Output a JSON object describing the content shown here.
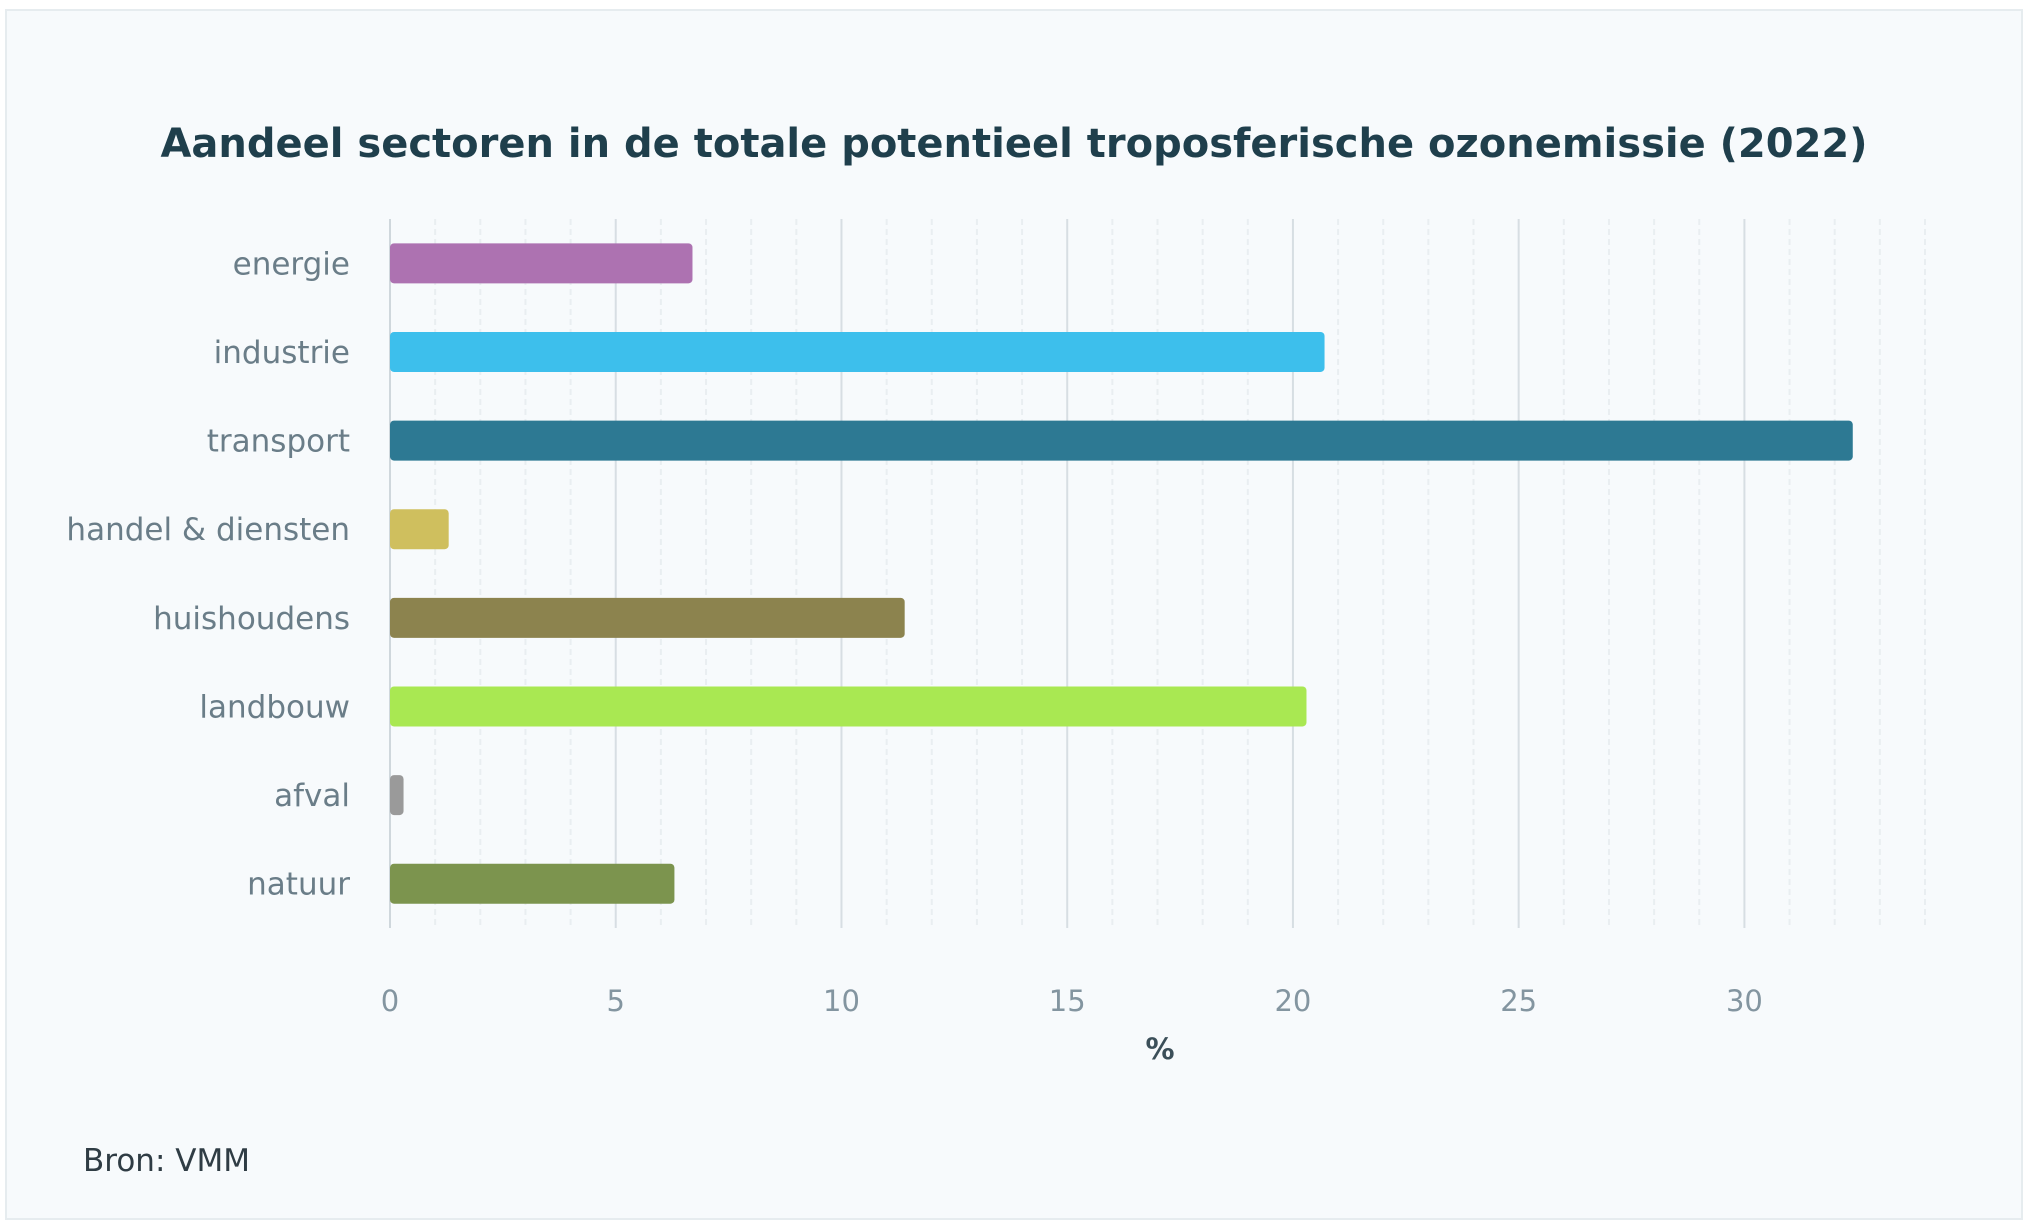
{
  "chart_data": {
    "type": "bar",
    "orientation": "horizontal",
    "title": "Aandeel sectoren in de totale potentieel troposferische ozonemissie (2022)",
    "xlabel": "%",
    "ylabel": "",
    "xlim": [
      0,
      34
    ],
    "xticks": [
      0,
      5,
      10,
      15,
      20,
      25,
      30
    ],
    "minor_gridlines": true,
    "legend": "none",
    "categories": [
      "energie",
      "industrie",
      "transport",
      "handel & diensten",
      "huishoudens",
      "landbouw",
      "afval",
      "natuur"
    ],
    "values": [
      6.7,
      20.7,
      32.4,
      1.3,
      11.4,
      20.3,
      0.3,
      6.3
    ],
    "colors": [
      "#ad72b1",
      "#3dbfec",
      "#2d7993",
      "#cfbf5e",
      "#8c834e",
      "#a9e852",
      "#9a9a9a",
      "#7c944e"
    ],
    "source": "Bron: VMM"
  },
  "colors": {
    "card_background": "#f7fafc",
    "grid_major": "#d7dee3",
    "grid_minor": "#e9eef1"
  }
}
